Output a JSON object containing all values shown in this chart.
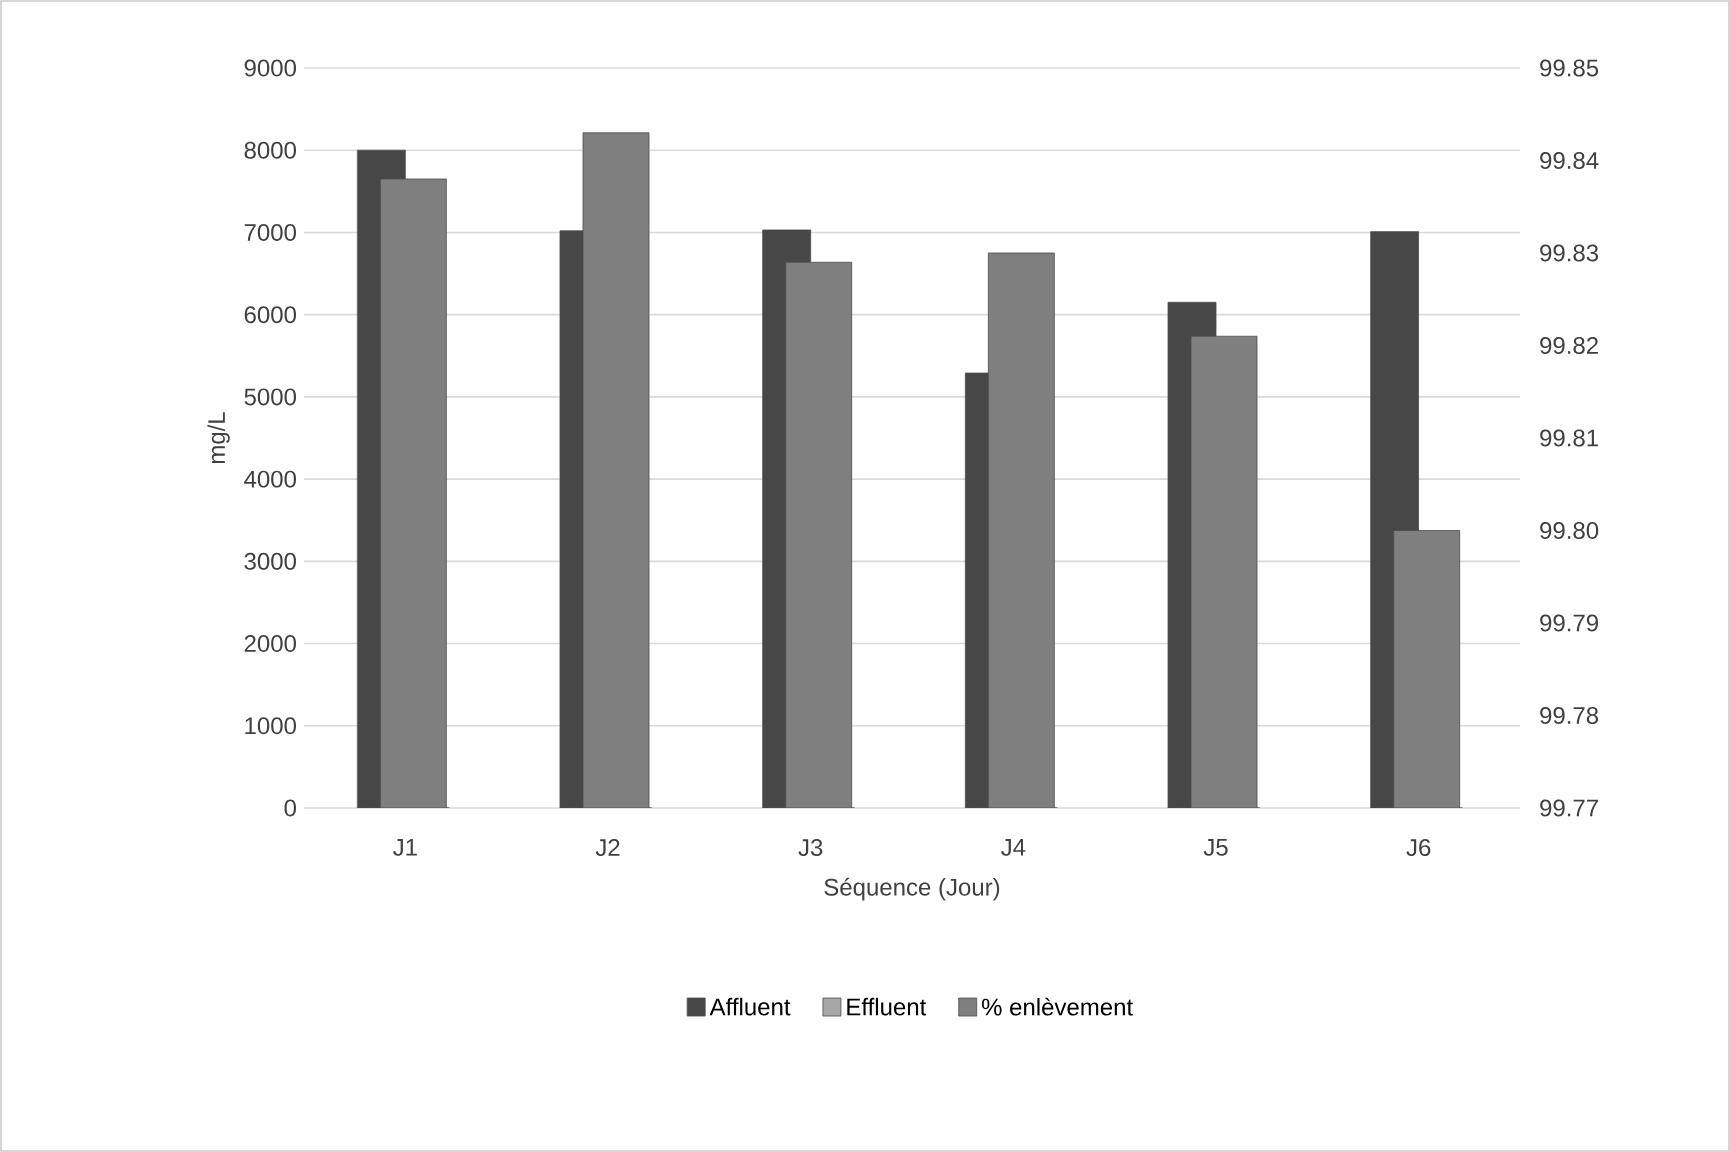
{
  "chart_data": {
    "type": "bar",
    "xlabel": "Séquence (Jour)",
    "ylabel": "mg/L",
    "categories": [
      "J1",
      "J2",
      "J3",
      "J4",
      "J5",
      "J6"
    ],
    "series": [
      {
        "name": "Affluent",
        "color": "#474747",
        "values": [
          8000,
          7020,
          7030,
          5290,
          6150,
          7010
        ]
      },
      {
        "name": "Effluent",
        "color": "#a6a6a6",
        "values": [
          0,
          0,
          0,
          0,
          0,
          0
        ]
      },
      {
        "name": "% enlèvement",
        "color": "#7f7f7f",
        "axis": "y2",
        "values": [
          99.838,
          99.843,
          99.829,
          99.83,
          99.821,
          99.8
        ]
      }
    ],
    "ylim": [
      0,
      9000
    ],
    "yticks": [
      0,
      1000,
      2000,
      3000,
      4000,
      5000,
      6000,
      7000,
      8000,
      9000
    ],
    "y2lim": [
      99.77,
      99.85
    ],
    "y2ticks": [
      99.77,
      99.78,
      99.79,
      {
        "value": 99.8,
        "label": "99.80"
      },
      99.81,
      99.82,
      99.83,
      99.84,
      99.85
    ],
    "grid": "y",
    "legend": "bottom"
  }
}
